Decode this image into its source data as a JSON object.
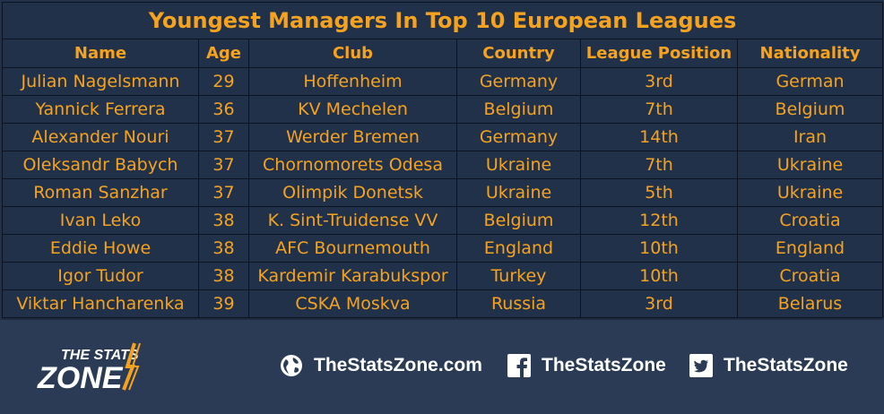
{
  "title": "Youngest Managers In Top 10 European Leagues",
  "columns": [
    "Name",
    "Age",
    "Club",
    "Country",
    "League Position",
    "Nationality"
  ],
  "rows": [
    [
      "Julian Nagelsmann",
      "29",
      "Hoffenheim",
      "Germany",
      "3rd",
      "German"
    ],
    [
      "Yannick Ferrera",
      "36",
      "KV Mechelen",
      "Belgium",
      "7th",
      "Belgium"
    ],
    [
      "Alexander Nouri",
      "37",
      "Werder Bremen",
      "Germany",
      "14th",
      "Iran"
    ],
    [
      "Oleksandr Babych",
      "37",
      "Chornomorets Odesa",
      "Ukraine",
      "7th",
      "Ukraine"
    ],
    [
      "Roman Sanzhar",
      "37",
      "Olimpik Donetsk",
      "Ukraine",
      "5th",
      "Ukraine"
    ],
    [
      "Ivan Leko",
      "38",
      "K. Sint-Truidense VV",
      "Belgium",
      "12th",
      "Croatia"
    ],
    [
      "Eddie Howe",
      "38",
      "AFC Bournemouth",
      "England",
      "10th",
      "England"
    ],
    [
      "Igor Tudor",
      "38",
      "Kardemir Karabukspor",
      "Turkey",
      "10th",
      "Croatia"
    ],
    [
      "Viktar Hancharenka",
      "39",
      "CSKA Moskva",
      "Russia",
      "3rd",
      "Belarus"
    ]
  ],
  "footer": {
    "logo_line1": "THE STATS",
    "logo_line2": "ZONE",
    "website": "TheStatsZone.com",
    "facebook": "TheStatsZone",
    "twitter": "TheStatsZone",
    "icons": [
      "globe-icon",
      "facebook-icon",
      "twitter-icon"
    ]
  },
  "colors": {
    "accent": "#f5a31f",
    "background": "#22314a",
    "footer_background": "#2b3b55",
    "text_white": "#ffffff"
  }
}
